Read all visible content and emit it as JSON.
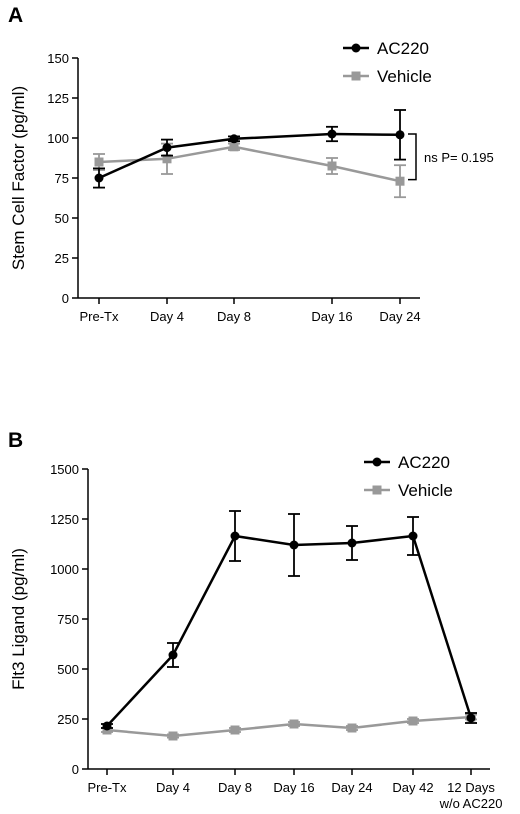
{
  "chart_data": [
    {
      "panel": "A",
      "type": "line",
      "ylabel": "Stem Cell Factor  (pg/ml)",
      "xlabel": "",
      "categories": [
        "Pre-Tx",
        "Day 4",
        "Day 8",
        "Day 16",
        "Day 24"
      ],
      "ylim": [
        0,
        150
      ],
      "yticks": [
        0,
        25,
        50,
        75,
        100,
        125,
        150
      ],
      "legend_position": "top-right",
      "series": [
        {
          "name": "AC220",
          "color": "#000000",
          "marker": "circle",
          "values": [
            75,
            94,
            99.5,
            102.5,
            102
          ],
          "errors": [
            6,
            5,
            1.5,
            4.5,
            15.5
          ]
        },
        {
          "name": "Vehicle",
          "color": "#999999",
          "marker": "square",
          "values": [
            85,
            87,
            94.5,
            82.5,
            73
          ],
          "errors": [
            5,
            9.5,
            2,
            5,
            10
          ]
        }
      ],
      "annotation": {
        "text": "ns P= 0.195",
        "span": [
          74,
          102.5
        ]
      }
    },
    {
      "panel": "B",
      "type": "line",
      "ylabel": "Flt3 Ligand (pg/ml)",
      "xlabel": "",
      "categories": [
        "Pre-Tx",
        "Day 4",
        "Day 8",
        "Day 16",
        "Day 24",
        "Day 42",
        [
          "12 Days",
          "w/o AC220"
        ]
      ],
      "ylim": [
        0,
        1500
      ],
      "yticks": [
        0,
        250,
        500,
        750,
        1000,
        1250,
        1500
      ],
      "legend_position": "top-right",
      "series": [
        {
          "name": "AC220",
          "color": "#000000",
          "marker": "circle",
          "values": [
            215,
            570,
            1165,
            1120,
            1130,
            1165,
            255
          ],
          "errors": [
            10,
            60,
            125,
            155,
            85,
            95,
            25
          ]
        },
        {
          "name": "Vehicle",
          "color": "#999999",
          "marker": "square",
          "values": [
            195,
            165,
            195,
            225,
            205,
            240,
            260
          ],
          "errors": [
            10,
            8,
            10,
            10,
            10,
            10,
            12
          ]
        }
      ]
    }
  ]
}
